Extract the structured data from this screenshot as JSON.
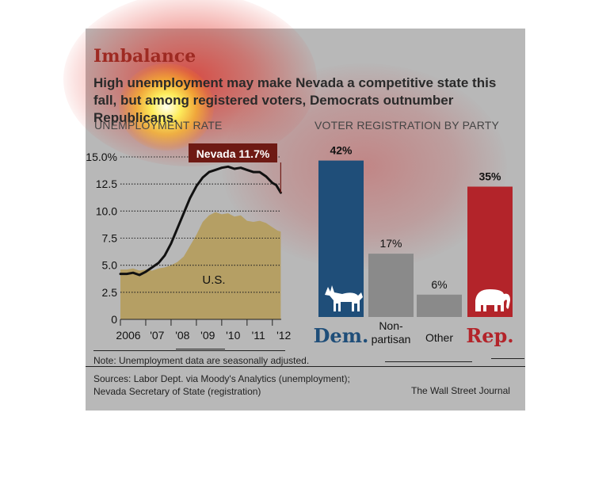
{
  "header": {
    "title": "Imbalance",
    "subtitle": "High unemployment may make Nevada a competitive state this fall, but among registered voters, Democrats outnumber Republicans."
  },
  "footer": {
    "note": "Note: Unemployment data are seasonally adjusted.",
    "sources_line1": "Sources: Labor Dept. via Moody's Analytics (unemployment);",
    "sources_line2": "Nevada Secretary of State (registration)",
    "credit": "The Wall Street Journal"
  },
  "colors": {
    "panel": "#b8b8b8",
    "us_area": "#b59f64",
    "nevada_line": "#111111",
    "dem": "#1f4e79",
    "nonpartisan": "#8a8a8a",
    "other": "#8a8a8a",
    "rep": "#b3242a",
    "callout": "#6e1a14",
    "glow_red": "#e0281e",
    "glow_yellow": "#fff25a"
  },
  "chart_data": [
    {
      "type": "area",
      "title": "UNEMPLOYMENT RATE",
      "ylim": [
        0,
        15
      ],
      "y_ticks": [
        0,
        2.5,
        5.0,
        7.5,
        10.0,
        12.5,
        15.0
      ],
      "y_tick_labels": [
        "0",
        "2.5",
        "5.0",
        "7.5",
        "10.0",
        "12.5",
        "15.0%"
      ],
      "x_range": [
        2006,
        2012.35
      ],
      "x_ticks": [
        2006,
        2007,
        2008,
        2009,
        2010,
        2011,
        2012
      ],
      "x_tick_labels": [
        "2006",
        "'07",
        "'08",
        "'09",
        "'10",
        "'11",
        "'12"
      ],
      "grid": "horizontal dotted",
      "callout": "Nevada 11.7%",
      "series": [
        {
          "name": "U.S.",
          "style": "filled area",
          "x": [
            2005.85,
            2006.0,
            2006.25,
            2006.5,
            2006.75,
            2007.0,
            2007.25,
            2007.5,
            2007.75,
            2008.0,
            2008.25,
            2008.5,
            2008.75,
            2009.0,
            2009.25,
            2009.5,
            2009.75,
            2010.0,
            2010.25,
            2010.5,
            2010.75,
            2011.0,
            2011.25,
            2011.5,
            2011.75,
            2012.0,
            2012.2,
            2012.33
          ],
          "values": [
            4.7,
            4.6,
            4.6,
            4.7,
            4.5,
            4.6,
            4.5,
            4.7,
            4.8,
            5.0,
            5.3,
            5.8,
            6.8,
            7.8,
            9.0,
            9.6,
            9.9,
            9.7,
            9.8,
            9.5,
            9.6,
            9.1,
            9.0,
            9.1,
            8.9,
            8.5,
            8.2,
            8.1
          ]
        },
        {
          "name": "Nevada",
          "style": "line",
          "x": [
            2005.85,
            2006.0,
            2006.25,
            2006.5,
            2006.75,
            2007.0,
            2007.25,
            2007.5,
            2007.75,
            2008.0,
            2008.25,
            2008.5,
            2008.75,
            2009.0,
            2009.25,
            2009.5,
            2009.75,
            2010.0,
            2010.25,
            2010.5,
            2010.75,
            2011.0,
            2011.25,
            2011.5,
            2011.75,
            2012.0,
            2012.15,
            2012.33
          ],
          "values": [
            4.2,
            4.2,
            4.2,
            4.3,
            4.1,
            4.4,
            4.8,
            5.2,
            5.9,
            7.0,
            8.4,
            9.8,
            11.2,
            12.3,
            13.1,
            13.6,
            13.8,
            14.0,
            14.1,
            13.9,
            14.0,
            13.8,
            13.6,
            13.6,
            13.2,
            12.6,
            12.4,
            11.7
          ]
        }
      ]
    },
    {
      "type": "bar",
      "title": "VOTER REGISTRATION BY PARTY",
      "categories": [
        "Dem.",
        "Non-partisan",
        "Other",
        "Rep."
      ],
      "values": [
        42,
        17,
        6,
        35
      ],
      "value_labels": [
        "42%",
        "17%",
        "6%",
        "35%"
      ],
      "category_labels": [
        {
          "line1": "Dem.",
          "line2": ""
        },
        {
          "line1": "Non-",
          "line2": "partisan"
        },
        {
          "line1": "Other",
          "line2": ""
        },
        {
          "line1": "Rep.",
          "line2": ""
        }
      ],
      "icons": [
        "donkey-icon",
        "",
        "",
        "elephant-icon"
      ]
    }
  ]
}
